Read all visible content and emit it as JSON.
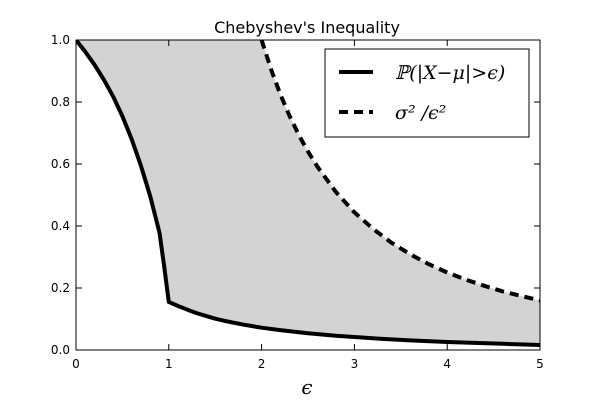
{
  "chart_data": {
    "type": "line",
    "title": "Chebyshev's Inequality",
    "xlabel": "ϵ",
    "ylabel": "",
    "xlim": [
      0,
      5
    ],
    "ylim": [
      0,
      1
    ],
    "xticks": [
      0,
      1,
      2,
      3,
      4,
      5
    ],
    "yticks": [
      0.0,
      0.2,
      0.4,
      0.6,
      0.8,
      1.0
    ],
    "xtick_labels": [
      "0",
      "1",
      "2",
      "3",
      "4",
      "5"
    ],
    "ytick_labels": [
      "0.0",
      "0.2",
      "0.4",
      "0.6",
      "0.8",
      "1.0"
    ],
    "grid": false,
    "legend_position": "top-right",
    "shaded_region": {
      "between": [
        "P(|X-μ|>ϵ)",
        "σ²/ϵ²"
      ],
      "color": "#d3d3d3"
    },
    "series": [
      {
        "name": "ℙ(|X−μ|>ϵ)",
        "style": "solid",
        "color": "#000000",
        "x": [
          0,
          0.1,
          0.2,
          0.3,
          0.4,
          0.5,
          0.6,
          0.7,
          0.8,
          0.9,
          0.95,
          1.0,
          1.1,
          1.2,
          1.3,
          1.4,
          1.5,
          1.6,
          1.8,
          2.0,
          2.2,
          2.5,
          2.8,
          3.0,
          3.3,
          3.6,
          4.0,
          4.3,
          4.6,
          5.0
        ],
        "y": [
          1.0,
          0.962,
          0.92,
          0.872,
          0.818,
          0.754,
          0.68,
          0.594,
          0.496,
          0.378,
          0.27,
          0.155,
          0.142,
          0.13,
          0.119,
          0.11,
          0.101,
          0.094,
          0.082,
          0.072,
          0.064,
          0.054,
          0.046,
          0.042,
          0.036,
          0.031,
          0.026,
          0.023,
          0.02,
          0.016
        ]
      },
      {
        "name": "σ² /ϵ²",
        "style": "dashed",
        "color": "#000000",
        "x": [
          2.0,
          2.1,
          2.2,
          2.3,
          2.4,
          2.5,
          2.6,
          2.8,
          3.0,
          3.2,
          3.4,
          3.6,
          3.8,
          4.0,
          4.2,
          4.4,
          4.6,
          4.8,
          5.0
        ],
        "y": [
          1.0,
          0.907,
          0.826,
          0.756,
          0.694,
          0.64,
          0.592,
          0.51,
          0.444,
          0.391,
          0.346,
          0.309,
          0.277,
          0.25,
          0.227,
          0.207,
          0.189,
          0.174,
          0.16
        ]
      }
    ]
  }
}
